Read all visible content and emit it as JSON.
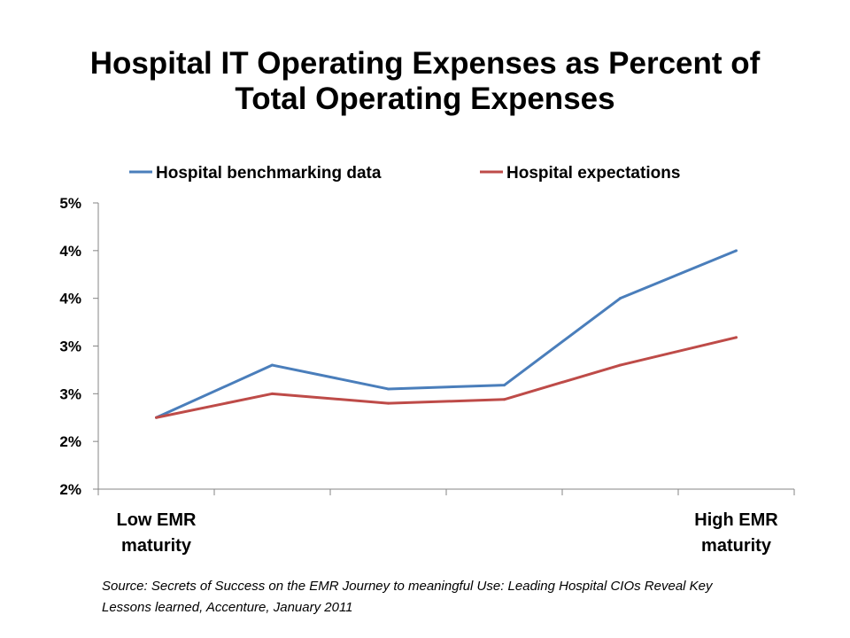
{
  "chart_data": {
    "type": "line",
    "title": [
      "Hospital IT Operating Expenses as Percent of",
      "Total Operating Expenses"
    ],
    "categories": [
      "Low EMR maturity",
      "",
      "",
      "",
      "",
      "High EMR maturity"
    ],
    "category_label_lines": [
      [
        "Low EMR",
        "maturity"
      ],
      [],
      [],
      [],
      [],
      [
        "High EMR",
        "maturity"
      ]
    ],
    "series": [
      {
        "name": "Hospital benchmarking data",
        "color": "#4a7ebb",
        "values": [
          2.25,
          2.8,
          2.55,
          2.59,
          3.5,
          4.0
        ]
      },
      {
        "name": "Hospital expectations",
        "color": "#be4b48",
        "values": [
          2.25,
          2.5,
          2.4,
          2.44,
          2.8,
          3.09
        ]
      }
    ],
    "ylim": [
      1.5,
      4.5
    ],
    "yticks": [
      1.5,
      2.0,
      2.5,
      3.0,
      3.5,
      4.0,
      4.5
    ],
    "ytick_labels": [
      "2%",
      "2%",
      "3%",
      "3%",
      "4%",
      "4%",
      "5%"
    ],
    "xlabel": "",
    "ylabel": "",
    "grid": false,
    "legend_position": "top"
  },
  "source": [
    "Source:  Secrets of Success on the EMR Journey to meaningful Use: Leading Hospital CIOs Reveal Key",
    "Lessons learned, Accenture, January 2011"
  ]
}
